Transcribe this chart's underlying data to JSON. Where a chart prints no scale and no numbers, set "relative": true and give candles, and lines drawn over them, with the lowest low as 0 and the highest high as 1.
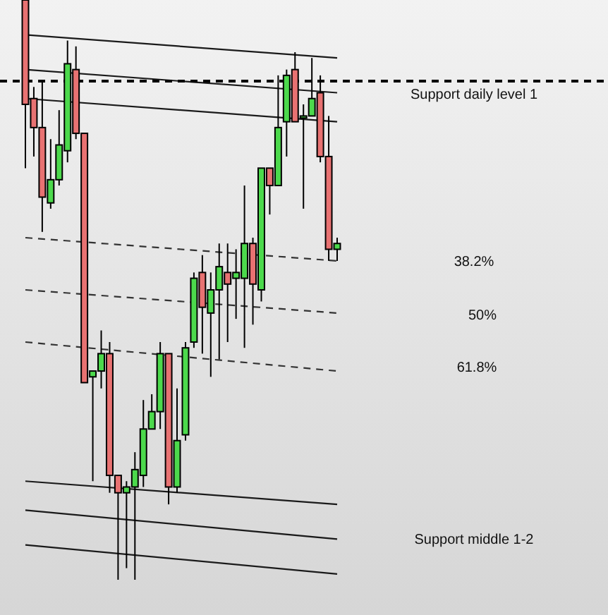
{
  "chart_data": {
    "type": "candlestick",
    "relative": true,
    "categories": [
      null,
      null,
      null,
      null,
      null,
      null,
      null,
      null,
      null,
      null,
      null,
      null,
      null,
      null,
      null,
      null,
      null,
      null,
      null,
      null,
      null,
      null,
      null,
      null,
      null,
      null,
      null,
      null,
      null,
      null,
      null,
      null,
      null,
      null,
      null,
      null,
      null,
      null
    ],
    "ohlc": [
      [
        1,
        1,
        0.71,
        0.82
      ],
      [
        0.83,
        0.85,
        0.73,
        0.78
      ],
      [
        0.78,
        0.86,
        0.6,
        0.66
      ],
      [
        0.65,
        0.76,
        0.64,
        0.69
      ],
      [
        0.69,
        0.81,
        0.68,
        0.75
      ],
      [
        0.74,
        0.93,
        0.72,
        0.89
      ],
      [
        0.88,
        0.92,
        0.76,
        0.77
      ],
      [
        0.77,
        0.77,
        0.34,
        0.34
      ],
      [
        0.35,
        0.36,
        0.17,
        0.36
      ],
      [
        0.36,
        0.43,
        0.33,
        0.39
      ],
      [
        0.39,
        0.41,
        0.15,
        0.18
      ],
      [
        0.18,
        0.18,
        0,
        0.15
      ],
      [
        0.15,
        0.17,
        0.02,
        0.16
      ],
      [
        0.16,
        0.22,
        0,
        0.19
      ],
      [
        0.18,
        0.31,
        0.16,
        0.26
      ],
      [
        0.26,
        0.32,
        0.26,
        0.29
      ],
      [
        0.29,
        0.41,
        0.26,
        0.39
      ],
      [
        0.39,
        0.39,
        0.13,
        0.16
      ],
      [
        0.16,
        0.33,
        0.15,
        0.24
      ],
      [
        0.25,
        0.41,
        0.24,
        0.4
      ],
      [
        0.41,
        0.53,
        0.4,
        0.52
      ],
      [
        0.53,
        0.56,
        0.39,
        0.47
      ],
      [
        0.46,
        0.53,
        0.35,
        0.5
      ],
      [
        0.5,
        0.58,
        0.38,
        0.54
      ],
      [
        0.53,
        0.58,
        0.41,
        0.51
      ],
      [
        0.52,
        0.57,
        0.45,
        0.53
      ],
      [
        0.52,
        0.68,
        0.4,
        0.58
      ],
      [
        0.58,
        0.59,
        0.44,
        0.51
      ],
      [
        0.5,
        0.71,
        0.48,
        0.71
      ],
      [
        0.71,
        0.71,
        0.63,
        0.68
      ],
      [
        0.68,
        0.87,
        0.68,
        0.78
      ],
      [
        0.79,
        0.88,
        0.73,
        0.87
      ],
      [
        0.88,
        0.91,
        0.79,
        0.79
      ],
      [
        0.8,
        0.82,
        0.64,
        0.8
      ],
      [
        0.8,
        0.9,
        0.8,
        0.83
      ],
      [
        0.84,
        0.87,
        0.72,
        0.73
      ],
      [
        0.73,
        0.8,
        0.55,
        0.57
      ],
      [
        0.57,
        0.59,
        0.55,
        0.58
      ]
    ],
    "colors": [
      "#e87272",
      "#e87272",
      "#e87272",
      "#4cd94c",
      "#4cd94c",
      "#4cd94c",
      "#e87272",
      "#e87272",
      "#4cd94c",
      "#4cd94c",
      "#e87272",
      "#e87272",
      "#4cd94c",
      "#4cd94c",
      "#4cd94c",
      "#4cd94c",
      "#4cd94c",
      "#e87272",
      "#4cd94c",
      "#4cd94c",
      "#4cd94c",
      "#e87272",
      "#4cd94c",
      "#4cd94c",
      "#e87272",
      "#4cd94c",
      "#4cd94c",
      "#e87272",
      "#4cd94c",
      "#e87272",
      "#4cd94c",
      "#4cd94c",
      "#e87272",
      "#4cd94c",
      "#4cd94c",
      "#e87272",
      "#e87272",
      "#4cd94c"
    ],
    "series": [
      {
        "type": "line",
        "values": [
          0.94,
          null,
          null,
          null,
          null,
          null,
          null,
          null,
          null,
          null,
          null,
          null,
          null,
          null,
          null,
          null,
          null,
          null,
          null,
          null,
          null,
          null,
          null,
          null,
          null,
          null,
          null,
          null,
          null,
          null,
          null,
          null,
          null,
          null,
          null,
          null,
          null,
          0.9
        ],
        "color": "#1a1a1a",
        "line_style": "solid"
      },
      {
        "type": "line",
        "values": [
          0.88,
          null,
          null,
          null,
          null,
          null,
          null,
          null,
          null,
          null,
          null,
          null,
          null,
          null,
          null,
          null,
          null,
          null,
          null,
          null,
          null,
          null,
          null,
          null,
          null,
          null,
          null,
          null,
          null,
          null,
          null,
          null,
          null,
          null,
          null,
          null,
          null,
          0.84
        ],
        "color": "#1a1a1a",
        "line_style": "solid"
      },
      {
        "type": "line",
        "values": [
          0.83,
          null,
          null,
          null,
          null,
          null,
          null,
          null,
          null,
          null,
          null,
          null,
          null,
          null,
          null,
          null,
          null,
          null,
          null,
          null,
          null,
          null,
          null,
          null,
          null,
          null,
          null,
          null,
          null,
          null,
          null,
          null,
          null,
          null,
          null,
          null,
          null,
          0.79
        ],
        "color": "#1a1a1a",
        "line_style": "solid"
      },
      {
        "type": "line",
        "values": [
          0.59,
          null,
          null,
          null,
          null,
          null,
          null,
          null,
          null,
          null,
          null,
          null,
          null,
          null,
          null,
          null,
          null,
          null,
          null,
          null,
          null,
          null,
          null,
          null,
          null,
          null,
          null,
          null,
          null,
          null,
          null,
          null,
          null,
          null,
          null,
          null,
          null,
          0.55
        ],
        "color": "#333333",
        "line_style": "dashed"
      },
      {
        "type": "line",
        "values": [
          0.5,
          null,
          null,
          null,
          null,
          null,
          null,
          null,
          null,
          null,
          null,
          null,
          null,
          null,
          null,
          null,
          null,
          null,
          null,
          null,
          null,
          null,
          null,
          null,
          null,
          null,
          null,
          null,
          null,
          null,
          null,
          null,
          null,
          null,
          null,
          null,
          null,
          0.46
        ],
        "color": "#333333",
        "line_style": "dashed"
      },
      {
        "type": "line",
        "values": [
          0.41,
          null,
          null,
          null,
          null,
          null,
          null,
          null,
          null,
          null,
          null,
          null,
          null,
          null,
          null,
          null,
          null,
          null,
          null,
          null,
          null,
          null,
          null,
          null,
          null,
          null,
          null,
          null,
          null,
          null,
          null,
          null,
          null,
          null,
          null,
          null,
          null,
          0.36
        ],
        "color": "#333333",
        "line_style": "dashed"
      },
      {
        "type": "line",
        "values": [
          0.17,
          null,
          null,
          null,
          null,
          null,
          null,
          null,
          null,
          null,
          null,
          null,
          null,
          null,
          null,
          null,
          null,
          null,
          null,
          null,
          null,
          null,
          null,
          null,
          null,
          null,
          null,
          null,
          null,
          null,
          null,
          null,
          null,
          null,
          null,
          null,
          null,
          0.13
        ],
        "color": "#1a1a1a",
        "line_style": "solid"
      },
      {
        "type": "line",
        "values": [
          0.12,
          null,
          null,
          null,
          null,
          null,
          null,
          null,
          null,
          null,
          null,
          null,
          null,
          null,
          null,
          null,
          null,
          null,
          null,
          null,
          null,
          null,
          null,
          null,
          null,
          null,
          null,
          null,
          null,
          null,
          null,
          null,
          null,
          null,
          null,
          null,
          null,
          0.07
        ],
        "color": "#1a1a1a",
        "line_style": "solid"
      },
      {
        "type": "line",
        "values": [
          0.06,
          null,
          null,
          null,
          null,
          null,
          null,
          null,
          null,
          null,
          null,
          null,
          null,
          null,
          null,
          null,
          null,
          null,
          null,
          null,
          null,
          null,
          null,
          null,
          null,
          null,
          null,
          null,
          null,
          null,
          null,
          null,
          null,
          null,
          null,
          null,
          null,
          0.01
        ],
        "color": "#1a1a1a",
        "line_style": "solid"
      }
    ],
    "ref_lines": [
      {
        "axis": "y",
        "value": 0.86,
        "label": "Support daily level 1",
        "color": "#000000",
        "line_style": "dashed"
      }
    ],
    "annotations": [
      "38.2%",
      "50%",
      "61.8%",
      "Support middle 1-2"
    ]
  }
}
